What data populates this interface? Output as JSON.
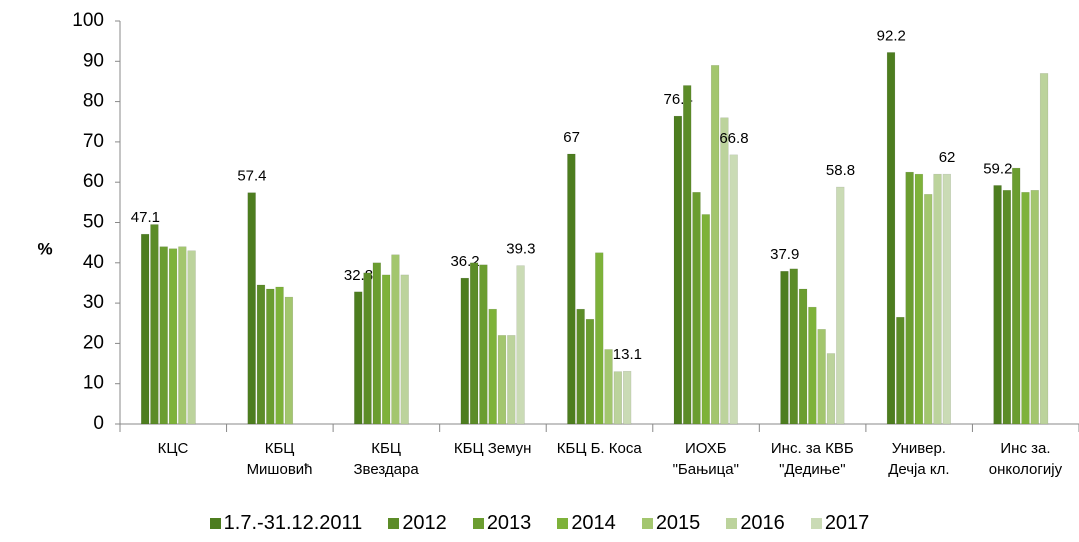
{
  "chart_data": {
    "type": "bar",
    "y_label": "%",
    "categories": [
      "КЦС",
      "КБЦ\nМишовић",
      "КБЦ\nЗвездара",
      "КБЦ Земун",
      "КБЦ Б. Коса",
      "ИОХБ\n\"Бањица\"",
      "Инс. за КВБ\n\"Дедиње\"",
      "Универ.\nДечја кл.",
      "Инс за.\nонкологију"
    ],
    "series": [
      {
        "name": "1.7.-31.12.2011",
        "color": "#4d7d1f",
        "values": [
          47.1,
          57.4,
          32.8,
          36.2,
          67,
          76.4,
          37.9,
          92.2,
          59.2
        ],
        "value_labels": [
          "47.1",
          "57.4",
          "32.8",
          "36.2",
          "67",
          "76.4",
          "37.9",
          "92.2",
          "59.2"
        ]
      },
      {
        "name": "2012",
        "color": "#5c8c28",
        "values": [
          49.5,
          34.5,
          37.5,
          40,
          28.5,
          84,
          38.5,
          26.5,
          58
        ]
      },
      {
        "name": "2013",
        "color": "#6b9d30",
        "values": [
          44,
          33.5,
          40,
          39.5,
          26,
          57.5,
          33.5,
          62.5,
          63.5
        ]
      },
      {
        "name": "2014",
        "color": "#7eb23a",
        "values": [
          43.5,
          34,
          37,
          28.5,
          42.5,
          52,
          29,
          62,
          57.5
        ]
      },
      {
        "name": "2015",
        "color": "#a3c66e",
        "values": [
          44,
          31.5,
          42,
          22,
          18.5,
          89,
          23.5,
          57,
          58
        ]
      },
      {
        "name": "2016",
        "color": "#bcd39c",
        "values": [
          43,
          null,
          37,
          22,
          13,
          76,
          17.5,
          62,
          87
        ]
      },
      {
        "name": "2017",
        "color": "#cadbb5",
        "values": [
          null,
          null,
          null,
          39.3,
          13.1,
          66.8,
          58.8,
          62,
          null
        ],
        "value_labels": [
          null,
          null,
          null,
          "39.3",
          "13.1",
          "66.8",
          "58.8",
          "62",
          null
        ]
      }
    ],
    "ylim": [
      0,
      100
    ],
    "yticks": [
      0,
      10,
      20,
      30,
      40,
      50,
      60,
      70,
      80,
      90,
      100
    ]
  }
}
